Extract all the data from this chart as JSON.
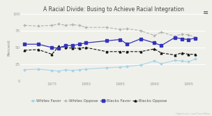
{
  "title": "A Racial Divide: Busing to Achieve Racial Integration",
  "ylabel": "Percent",
  "ylim": [
    0,
    100
  ],
  "yticks": [
    0,
    25,
    50,
    75,
    100
  ],
  "xlim": [
    1970.5,
    1997.5
  ],
  "xticks": [
    1975,
    1980,
    1985,
    1990,
    1995
  ],
  "xtick_labels": [
    "1975",
    "1980",
    "1985",
    "1990",
    "1995"
  ],
  "background_color": "#f0f0eb",
  "plot_bg": "#f0f0eb",
  "series": {
    "whites_favor": {
      "x": [
        1971,
        1973,
        1975,
        1976,
        1977,
        1978,
        1979,
        1980,
        1983,
        1985,
        1986,
        1988,
        1990,
        1991,
        1993,
        1994,
        1995,
        1996
      ],
      "y": [
        17,
        18,
        16,
        15,
        17,
        16,
        17,
        18,
        20,
        21,
        22,
        24,
        30,
        26,
        31,
        30,
        29,
        33
      ],
      "color": "#a8d4e6",
      "linestyle": "-",
      "marker": "o",
      "markersize": 1.8,
      "linewidth": 0.8,
      "label": "Whites Favor",
      "zorder": 2
    },
    "whites_oppose": {
      "x": [
        1971,
        1973,
        1975,
        1976,
        1977,
        1978,
        1979,
        1980,
        1983,
        1985,
        1986,
        1988,
        1990,
        1991,
        1993,
        1994,
        1995,
        1996
      ],
      "y": [
        83,
        82,
        83,
        85,
        83,
        84,
        83,
        80,
        80,
        77,
        78,
        75,
        68,
        73,
        67,
        70,
        69,
        65
      ],
      "color": "#b0b0b0",
      "linestyle": "--",
      "marker": "+",
      "markersize": 3.0,
      "linewidth": 0.8,
      "label": "Whites Oppose",
      "zorder": 2
    },
    "blacks_favor": {
      "x": [
        1971,
        1973,
        1975,
        1976,
        1977,
        1978,
        1979,
        1980,
        1983,
        1985,
        1986,
        1988,
        1990,
        1991,
        1993,
        1994,
        1995,
        1996
      ],
      "y": [
        55,
        55,
        50,
        49,
        53,
        53,
        55,
        57,
        60,
        62,
        55,
        63,
        57,
        53,
        65,
        63,
        62,
        64
      ],
      "color": "#3333bb",
      "linestyle": "-",
      "marker": "s",
      "markersize": 2.5,
      "linewidth": 0.9,
      "label": "Blacks Favor",
      "zorder": 3
    },
    "blacks_oppose": {
      "x": [
        1971,
        1973,
        1975,
        1976,
        1977,
        1978,
        1979,
        1980,
        1983,
        1985,
        1986,
        1988,
        1990,
        1991,
        1993,
        1994,
        1995,
        1996
      ],
      "y": [
        46,
        47,
        40,
        52,
        50,
        49,
        49,
        50,
        44,
        44,
        44,
        44,
        48,
        42,
        39,
        42,
        40,
        40
      ],
      "color": "#111111",
      "linestyle": "--",
      "marker": "^",
      "markersize": 2.0,
      "linewidth": 0.8,
      "label": "Blacks Oppose",
      "zorder": 2
    }
  },
  "title_fontsize": 5.5,
  "ylabel_fontsize": 4.5,
  "tick_fontsize": 4.0,
  "grid_color": "#ffffff",
  "legend_fontsize": 4.0
}
